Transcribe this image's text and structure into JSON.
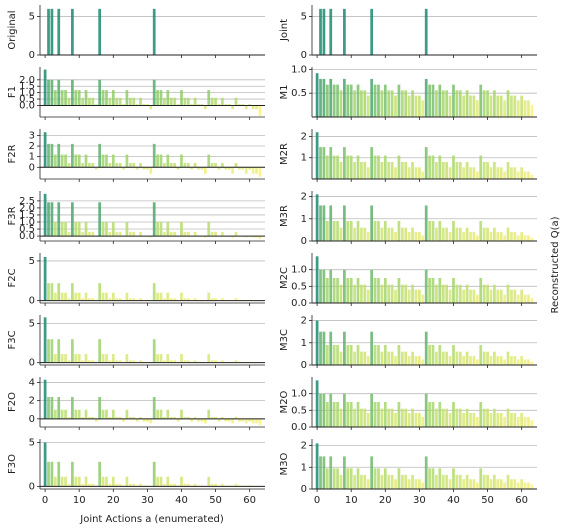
{
  "xlabel": "Joint Actions a (enumerated)",
  "ylabel": "Reconstructed Q(a)",
  "x": [
    0,
    1,
    2,
    3,
    4,
    5,
    6,
    7,
    8,
    9,
    10,
    11,
    12,
    13,
    14,
    15,
    16,
    17,
    18,
    19,
    20,
    21,
    22,
    23,
    24,
    25,
    26,
    27,
    28,
    29,
    30,
    31,
    32,
    33,
    34,
    35,
    36,
    37,
    38,
    39,
    40,
    41,
    42,
    43,
    44,
    45,
    46,
    47,
    48,
    49,
    50,
    51,
    52,
    53,
    54,
    55,
    56,
    57,
    58,
    59,
    60,
    61,
    62,
    63
  ],
  "xlim": [
    -1.5,
    64.5
  ],
  "xticks": [
    0,
    10,
    20,
    30,
    40,
    50,
    60
  ],
  "colormap": [
    "#fbf27a",
    "#9fd46a",
    "#1a8a6e"
  ],
  "grid": true,
  "chart_data": [
    {
      "type": "bar",
      "label": "Original",
      "ylim": [
        0,
        6.5
      ],
      "yticks": [
        0,
        5
      ],
      "values": [
        0,
        6,
        6,
        0,
        6,
        0,
        0,
        0,
        6,
        0,
        0,
        0,
        0,
        0,
        0,
        0,
        6,
        0,
        0,
        0,
        0,
        0,
        0,
        0,
        0,
        0,
        0,
        0,
        0,
        0,
        0,
        0,
        6,
        0,
        0,
        0,
        0,
        0,
        0,
        0,
        0,
        0,
        0,
        0,
        0,
        0,
        0,
        0,
        0,
        0,
        0,
        0,
        0,
        0,
        0,
        0,
        0,
        0,
        0,
        0,
        0,
        0,
        0,
        0
      ]
    },
    {
      "type": "bar",
      "label": "Joint",
      "ylim": [
        0,
        6.5
      ],
      "yticks": [
        0,
        5
      ],
      "values": [
        0,
        6,
        6,
        0,
        6,
        0,
        0,
        0,
        6,
        0,
        0,
        0,
        0,
        0,
        0,
        0,
        6,
        0,
        0,
        0,
        0,
        0,
        0,
        0,
        0,
        0,
        0,
        0,
        0,
        0,
        0,
        0,
        6,
        0,
        0,
        0,
        0,
        0,
        0,
        0,
        0,
        0,
        0,
        0,
        0,
        0,
        0,
        0,
        0,
        0,
        0,
        0,
        0,
        0,
        0,
        0,
        0,
        0,
        0,
        0,
        0,
        0,
        0,
        0
      ]
    },
    {
      "type": "bar",
      "label": "F1",
      "ylim": [
        -0.9,
        3.0
      ],
      "yticks": [
        {
          "value": 0,
          "label": "0.0"
        },
        0.5,
        {
          "value": 1,
          "label": "1.0"
        },
        1.5,
        {
          "value": 2,
          "label": "2.0"
        }
      ],
      "values": [
        2.8,
        2,
        2,
        1.2,
        2,
        1.2,
        1.2,
        0.6,
        2,
        1.2,
        1.2,
        0.6,
        1.2,
        0.6,
        0.6,
        0.1,
        2,
        1.2,
        1.2,
        0.6,
        1.2,
        0.6,
        0.6,
        0.1,
        1.2,
        0.6,
        0.6,
        0.1,
        0.6,
        0.1,
        0.1,
        -0.3,
        2,
        1.2,
        1.2,
        0.6,
        1.2,
        0.6,
        0.6,
        0.1,
        1.2,
        0.6,
        0.6,
        0.1,
        0.6,
        0.1,
        0.1,
        -0.3,
        1.2,
        0.6,
        0.6,
        0.1,
        0.6,
        0.1,
        0.1,
        -0.3,
        0.6,
        0.1,
        0.1,
        -0.3,
        0.1,
        -0.3,
        -0.3,
        -0.8
      ]
    },
    {
      "type": "bar",
      "label": "M1",
      "ylim": [
        0,
        1.05
      ],
      "yticks": [
        0.5,
        {
          "value": 1,
          "label": "1.0"
        }
      ],
      "values": [
        0.92,
        0.8,
        0.8,
        0.68,
        0.8,
        0.68,
        0.68,
        0.56,
        0.8,
        0.68,
        0.68,
        0.56,
        0.68,
        0.56,
        0.56,
        0.45,
        0.8,
        0.68,
        0.68,
        0.56,
        0.68,
        0.56,
        0.56,
        0.45,
        0.68,
        0.56,
        0.56,
        0.45,
        0.56,
        0.45,
        0.45,
        0.35,
        0.8,
        0.68,
        0.68,
        0.56,
        0.68,
        0.56,
        0.56,
        0.45,
        0.68,
        0.56,
        0.56,
        0.45,
        0.56,
        0.45,
        0.45,
        0.35,
        0.68,
        0.56,
        0.56,
        0.45,
        0.56,
        0.45,
        0.45,
        0.35,
        0.56,
        0.45,
        0.45,
        0.35,
        0.45,
        0.35,
        0.35,
        0.25
      ]
    },
    {
      "type": "bar",
      "label": "F2R",
      "ylim": [
        -1.1,
        3.6
      ],
      "yticks": [
        0,
        1,
        2,
        3
      ],
      "values": [
        3.3,
        2.2,
        2.2,
        1.2,
        2.2,
        1.2,
        1.2,
        0.4,
        2.2,
        1.2,
        1.2,
        0.4,
        1.2,
        0.4,
        0.4,
        -0.2,
        2.2,
        1.2,
        1.2,
        0.4,
        1.2,
        0.4,
        0.4,
        -0.2,
        1.2,
        0.4,
        0.4,
        -0.2,
        0.4,
        -0.2,
        -0.2,
        -0.6,
        2.2,
        1.2,
        1.2,
        0.4,
        1.2,
        0.4,
        0.4,
        -0.2,
        1.2,
        0.4,
        0.4,
        -0.2,
        0.4,
        -0.2,
        -0.2,
        -0.6,
        1.2,
        0.4,
        0.4,
        -0.2,
        0.4,
        -0.2,
        -0.2,
        -0.6,
        0.4,
        -0.2,
        -0.2,
        -0.6,
        -0.2,
        -0.6,
        -0.6,
        -0.9
      ]
    },
    {
      "type": "bar",
      "label": "M2R",
      "ylim": [
        0,
        2.35
      ],
      "yticks": [
        1,
        2
      ],
      "values": [
        2.2,
        1.5,
        1.5,
        1.1,
        1.5,
        1.1,
        1.1,
        0.8,
        1.5,
        1.1,
        1.1,
        0.8,
        1.1,
        0.8,
        0.8,
        0.55,
        1.5,
        1.1,
        1.1,
        0.8,
        1.1,
        0.8,
        0.8,
        0.55,
        1.1,
        0.8,
        0.8,
        0.55,
        0.8,
        0.55,
        0.55,
        0.35,
        1.5,
        1.1,
        1.1,
        0.8,
        1.1,
        0.8,
        0.8,
        0.55,
        1.1,
        0.8,
        0.8,
        0.55,
        0.8,
        0.55,
        0.55,
        0.35,
        1.1,
        0.8,
        0.8,
        0.55,
        0.8,
        0.55,
        0.55,
        0.35,
        0.8,
        0.55,
        0.55,
        0.35,
        0.55,
        0.35,
        0.35,
        0.2
      ]
    },
    {
      "type": "bar",
      "label": "F3R",
      "ylim": [
        -0.35,
        3.2
      ],
      "yticks": [
        {
          "value": 0,
          "label": "0.0"
        },
        0.5,
        {
          "value": 1,
          "label": "1.0"
        },
        1.5,
        {
          "value": 2,
          "label": "2.0"
        },
        2.5
      ],
      "values": [
        3,
        2.4,
        2.4,
        1,
        2.4,
        1,
        1,
        0.3,
        2.4,
        1,
        1,
        0.3,
        1,
        0.3,
        0.3,
        0,
        2.4,
        1,
        1,
        0.3,
        1,
        0.3,
        0.3,
        0,
        1,
        0.3,
        0.3,
        0,
        0.3,
        0,
        0,
        -0.1,
        2.4,
        1,
        1,
        0.3,
        1,
        0.3,
        0.3,
        0,
        1,
        0.3,
        0.3,
        0,
        0.3,
        0,
        0,
        -0.1,
        1,
        0.3,
        0.3,
        0,
        0.3,
        0,
        0,
        -0.1,
        0.3,
        0,
        0,
        -0.1,
        0,
        -0.1,
        -0.1,
        -0.2
      ]
    },
    {
      "type": "bar",
      "label": "M3R",
      "ylim": [
        0,
        2.25
      ],
      "yticks": [
        0,
        1,
        2
      ],
      "values": [
        2.1,
        1.6,
        1.6,
        0.9,
        1.6,
        0.9,
        0.9,
        0.6,
        1.6,
        0.9,
        0.9,
        0.6,
        0.9,
        0.6,
        0.6,
        0.4,
        1.6,
        0.9,
        0.9,
        0.6,
        0.9,
        0.6,
        0.6,
        0.4,
        0.9,
        0.6,
        0.6,
        0.4,
        0.6,
        0.4,
        0.4,
        0.25,
        1.6,
        0.9,
        0.9,
        0.6,
        0.9,
        0.6,
        0.6,
        0.4,
        0.9,
        0.6,
        0.6,
        0.4,
        0.6,
        0.4,
        0.4,
        0.25,
        0.9,
        0.6,
        0.6,
        0.4,
        0.6,
        0.4,
        0.4,
        0.25,
        0.6,
        0.4,
        0.4,
        0.25,
        0.4,
        0.25,
        0.25,
        0.15
      ]
    },
    {
      "type": "bar",
      "label": "F2C",
      "ylim": [
        -0.3,
        6
      ],
      "yticks": [
        0,
        5
      ],
      "values": [
        5.5,
        2.2,
        2.2,
        1,
        2.2,
        1,
        1,
        0.3,
        2.2,
        1,
        1,
        0.3,
        1,
        0.3,
        0.3,
        0.1,
        2.2,
        1,
        1,
        0.3,
        1,
        0.3,
        0.3,
        0.1,
        1,
        0.3,
        0.3,
        0.1,
        0.3,
        0.1,
        0.1,
        0.05,
        2.2,
        1,
        1,
        0.3,
        1,
        0.3,
        0.3,
        0.1,
        1,
        0.3,
        0.3,
        0.1,
        0.3,
        0.1,
        0.1,
        0.05,
        1,
        0.3,
        0.3,
        0.1,
        0.3,
        0.1,
        0.1,
        0.05,
        0.3,
        0.1,
        0.1,
        0.05,
        0.1,
        0.05,
        0.05,
        0
      ]
    },
    {
      "type": "bar",
      "label": "M2C",
      "ylim": [
        0,
        1.5
      ],
      "yticks": [
        {
          "value": 0,
          "label": "0.0"
        },
        0.5,
        {
          "value": 1,
          "label": "1.0"
        }
      ],
      "values": [
        1.4,
        1,
        1,
        0.75,
        1,
        0.75,
        0.75,
        0.55,
        1,
        0.75,
        0.75,
        0.55,
        0.75,
        0.55,
        0.55,
        0.4,
        1,
        0.75,
        0.75,
        0.55,
        0.75,
        0.55,
        0.55,
        0.4,
        0.75,
        0.55,
        0.55,
        0.4,
        0.55,
        0.4,
        0.4,
        0.25,
        1,
        0.75,
        0.75,
        0.55,
        0.75,
        0.55,
        0.55,
        0.4,
        0.75,
        0.55,
        0.55,
        0.4,
        0.55,
        0.4,
        0.4,
        0.25,
        0.75,
        0.55,
        0.55,
        0.4,
        0.55,
        0.4,
        0.4,
        0.25,
        0.55,
        0.4,
        0.4,
        0.25,
        0.4,
        0.25,
        0.25,
        0.15
      ]
    },
    {
      "type": "bar",
      "label": "F3C",
      "ylim": [
        -0.3,
        6.1
      ],
      "yticks": [
        0,
        5
      ],
      "values": [
        5.8,
        3,
        3,
        1.1,
        3,
        1.1,
        1.1,
        0.3,
        3,
        1.1,
        1.1,
        0.3,
        1.1,
        0.3,
        0.3,
        0.1,
        3,
        1.1,
        1.1,
        0.3,
        1.1,
        0.3,
        0.3,
        0.1,
        1.1,
        0.3,
        0.3,
        0.1,
        0.3,
        0.1,
        0.1,
        0.05,
        3,
        1.1,
        1.1,
        0.3,
        1.1,
        0.3,
        0.3,
        0.1,
        1.1,
        0.3,
        0.3,
        0.1,
        0.3,
        0.1,
        0.1,
        0.05,
        1.1,
        0.3,
        0.3,
        0.1,
        0.3,
        0.1,
        0.1,
        0.05,
        0.3,
        0.1,
        0.1,
        0.05,
        0.1,
        0.05,
        0.05,
        0
      ]
    },
    {
      "type": "bar",
      "label": "M3C",
      "ylim": [
        0,
        2.25
      ],
      "yticks": [
        0,
        1,
        2
      ],
      "values": [
        2,
        1.5,
        1.5,
        0.9,
        1.5,
        0.9,
        0.9,
        0.6,
        1.5,
        0.9,
        0.9,
        0.6,
        0.9,
        0.6,
        0.6,
        0.4,
        1.5,
        0.9,
        0.9,
        0.6,
        0.9,
        0.6,
        0.6,
        0.4,
        0.9,
        0.6,
        0.6,
        0.4,
        0.6,
        0.4,
        0.4,
        0.25,
        1.5,
        0.9,
        0.9,
        0.6,
        0.9,
        0.6,
        0.6,
        0.4,
        0.9,
        0.6,
        0.6,
        0.4,
        0.6,
        0.4,
        0.4,
        0.25,
        0.9,
        0.6,
        0.6,
        0.4,
        0.6,
        0.4,
        0.4,
        0.25,
        0.6,
        0.4,
        0.4,
        0.25,
        0.4,
        0.25,
        0.25,
        0.15
      ]
    },
    {
      "type": "bar",
      "label": "F2O",
      "ylim": [
        -0.9,
        4.6
      ],
      "yticks": [
        0,
        2,
        4
      ],
      "values": [
        4.3,
        2.4,
        2.4,
        1,
        2.4,
        1,
        1,
        0.2,
        2.4,
        1,
        1,
        0.2,
        1,
        0.2,
        0.2,
        -0.3,
        2.4,
        1,
        1,
        0.2,
        1,
        0.2,
        0.2,
        -0.3,
        1,
        0.2,
        0.2,
        -0.3,
        0.2,
        -0.3,
        -0.3,
        -0.5,
        2.4,
        1,
        1,
        0.2,
        1,
        0.2,
        0.2,
        -0.3,
        1,
        0.2,
        0.2,
        -0.3,
        0.2,
        -0.3,
        -0.3,
        -0.5,
        1,
        0.2,
        0.2,
        -0.3,
        0.2,
        -0.3,
        -0.3,
        -0.5,
        0.2,
        -0.3,
        -0.3,
        -0.5,
        -0.3,
        -0.5,
        -0.5,
        -0.7
      ]
    },
    {
      "type": "bar",
      "label": "M2O",
      "ylim": [
        0,
        1.5
      ],
      "yticks": [
        {
          "value": 0,
          "label": "0.0"
        },
        0.5,
        {
          "value": 1,
          "label": "1.0"
        }
      ],
      "values": [
        1.4,
        1,
        1,
        0.75,
        1,
        0.75,
        0.75,
        0.55,
        1,
        0.75,
        0.75,
        0.55,
        0.75,
        0.55,
        0.55,
        0.42,
        1,
        0.75,
        0.75,
        0.55,
        0.75,
        0.55,
        0.55,
        0.42,
        0.75,
        0.55,
        0.55,
        0.42,
        0.55,
        0.42,
        0.42,
        0.3,
        1,
        0.75,
        0.75,
        0.55,
        0.75,
        0.55,
        0.55,
        0.42,
        0.75,
        0.55,
        0.55,
        0.42,
        0.55,
        0.42,
        0.42,
        0.3,
        0.75,
        0.55,
        0.55,
        0.42,
        0.55,
        0.42,
        0.42,
        0.3,
        0.55,
        0.42,
        0.42,
        0.3,
        0.42,
        0.3,
        0.3,
        0.2
      ]
    },
    {
      "type": "bar",
      "label": "F3O",
      "ylim": [
        -0.3,
        5.4
      ],
      "yticks": [
        0,
        5
      ],
      "values": [
        5,
        2.8,
        2.8,
        1.1,
        2.8,
        1.1,
        1.1,
        0.3,
        2.8,
        1.1,
        1.1,
        0.3,
        1.1,
        0.3,
        0.3,
        0.1,
        2.8,
        1.1,
        1.1,
        0.3,
        1.1,
        0.3,
        0.3,
        0.1,
        1.1,
        0.3,
        0.3,
        0.1,
        0.3,
        0.1,
        0.1,
        0.05,
        2.8,
        1.1,
        1.1,
        0.3,
        1.1,
        0.3,
        0.3,
        0.1,
        1.1,
        0.3,
        0.3,
        0.1,
        0.3,
        0.1,
        0.1,
        0.05,
        1.1,
        0.3,
        0.3,
        0.1,
        0.3,
        0.1,
        0.1,
        0.05,
        0.3,
        0.1,
        0.1,
        0.05,
        0.1,
        0.05,
        0.05,
        0
      ]
    },
    {
      "type": "bar",
      "label": "M3O",
      "ylim": [
        0,
        2.3
      ],
      "yticks": [
        0,
        1,
        2
      ],
      "values": [
        2.1,
        1.5,
        1.5,
        0.95,
        1.5,
        0.95,
        0.95,
        0.65,
        1.5,
        0.95,
        0.95,
        0.65,
        0.95,
        0.65,
        0.65,
        0.45,
        1.5,
        0.95,
        0.95,
        0.65,
        0.95,
        0.65,
        0.65,
        0.45,
        0.95,
        0.65,
        0.65,
        0.45,
        0.65,
        0.45,
        0.45,
        0.3,
        1.5,
        0.95,
        0.95,
        0.65,
        0.95,
        0.65,
        0.65,
        0.45,
        0.95,
        0.65,
        0.65,
        0.45,
        0.65,
        0.45,
        0.45,
        0.3,
        0.95,
        0.65,
        0.65,
        0.45,
        0.65,
        0.45,
        0.45,
        0.3,
        0.65,
        0.45,
        0.45,
        0.3,
        0.45,
        0.3,
        0.3,
        0.2
      ]
    }
  ]
}
